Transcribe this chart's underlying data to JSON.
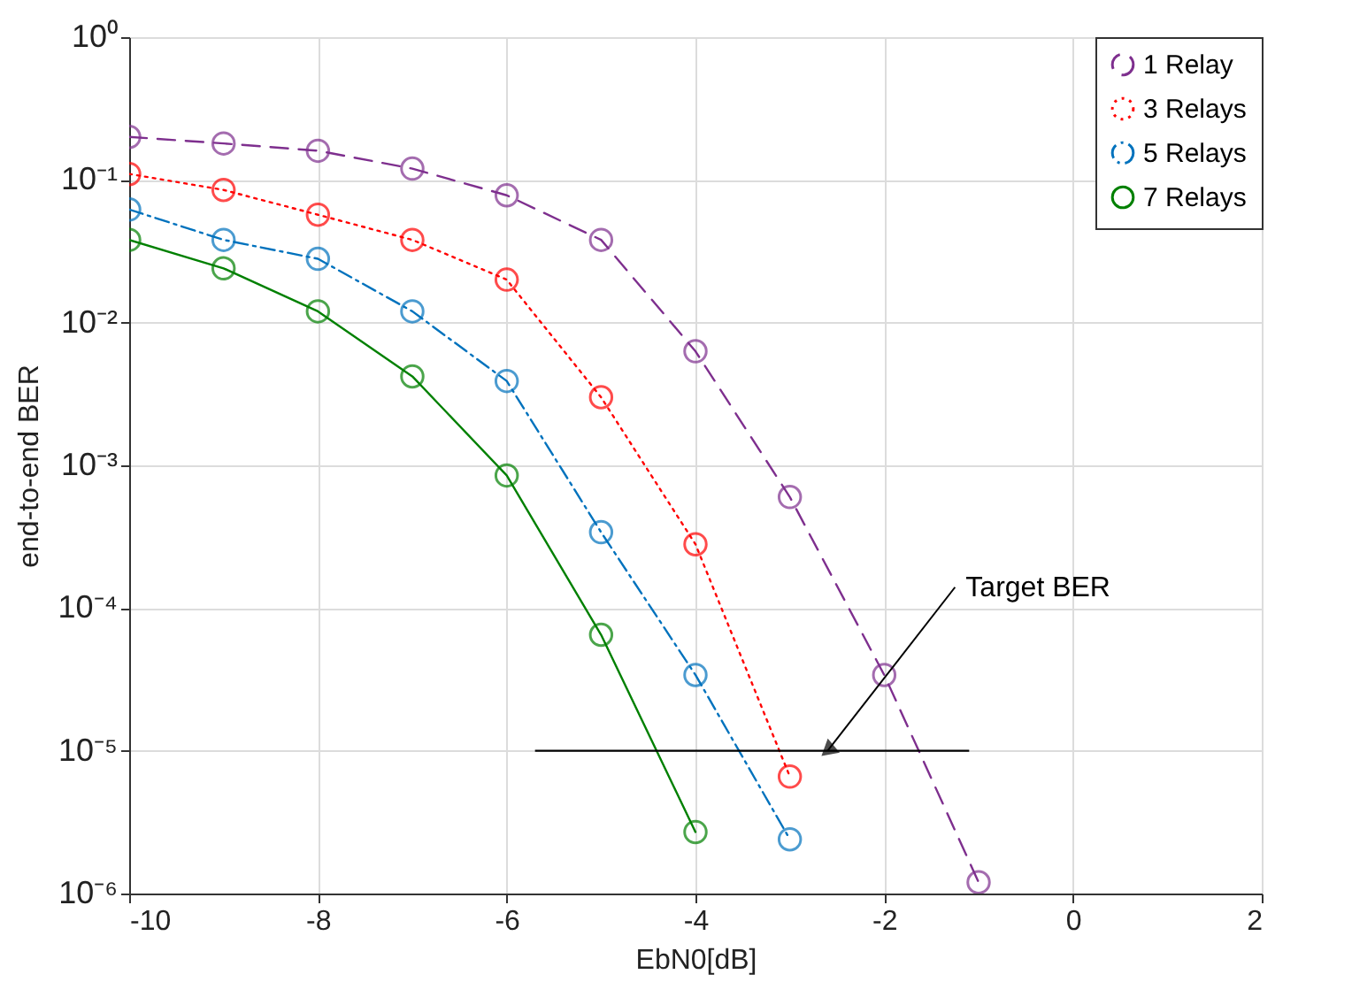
{
  "chart_data": {
    "type": "line",
    "xlabel": "EbN0[dB]",
    "ylabel": "end-to-end BER",
    "log": "y",
    "grid": true,
    "legend": "top right",
    "marker": "circle",
    "xlim": [
      -10,
      2
    ],
    "xticks": [
      -10,
      -8,
      -6,
      -4,
      -2,
      0,
      2
    ],
    "ylim": [
      1e-06,
      1
    ],
    "yticks": [
      {
        "value": 1e-06,
        "label": "10⁻⁶"
      },
      {
        "value": 1e-05,
        "label": "10⁻⁵"
      },
      {
        "value": 0.0001,
        "label": "10⁻⁴"
      },
      {
        "value": 0.001,
        "label": "10⁻³"
      },
      {
        "value": 0.01,
        "label": "10⁻²"
      },
      {
        "value": 0.1,
        "label": "10⁻¹"
      },
      {
        "value": 1,
        "label": "10⁰"
      }
    ],
    "series": [
      {
        "name": "1 Relay",
        "color": "#7e2f8e",
        "line_style": "dashed",
        "x": [
          -10,
          -9,
          -8,
          -7,
          -6,
          -5,
          -4,
          -3,
          -2,
          -1
        ],
        "values": [
          0.2,
          0.18,
          0.16,
          0.12,
          0.078,
          0.038,
          0.0063,
          0.0006,
          3.4e-05,
          1.2e-06
        ]
      },
      {
        "name": "3 Relays",
        "color": "#ff0000",
        "line_style": "dotted",
        "x": [
          -10,
          -9,
          -8,
          -7,
          -6,
          -5,
          -4,
          -3
        ],
        "values": [
          0.11,
          0.085,
          0.057,
          0.038,
          0.02,
          0.003,
          0.00028,
          6.6e-06
        ]
      },
      {
        "name": "5 Relays",
        "color": "#0072bd",
        "line_style": "dashdot",
        "x": [
          -10,
          -9,
          -8,
          -7,
          -6,
          -5,
          -4,
          -3
        ],
        "values": [
          0.062,
          0.038,
          0.028,
          0.012,
          0.0039,
          0.00034,
          3.4e-05,
          2.4e-06
        ]
      },
      {
        "name": "7 Relays",
        "color": "#008000",
        "line_style": "solid",
        "x": [
          -10,
          -9,
          -8,
          -7,
          -6,
          -5,
          -4
        ],
        "values": [
          0.038,
          0.024,
          0.012,
          0.0042,
          0.00085,
          6.5e-05,
          2.7e-06
        ]
      },
      {
        "color": "#000000",
        "line_style": "solid",
        "marker": "none",
        "x": [
          -5.7,
          -1.1
        ],
        "values": [
          1e-05,
          1e-05
        ]
      }
    ],
    "annotations": [
      {
        "text": "Target BER",
        "x": -2.6,
        "y": 1e-05
      }
    ]
  }
}
